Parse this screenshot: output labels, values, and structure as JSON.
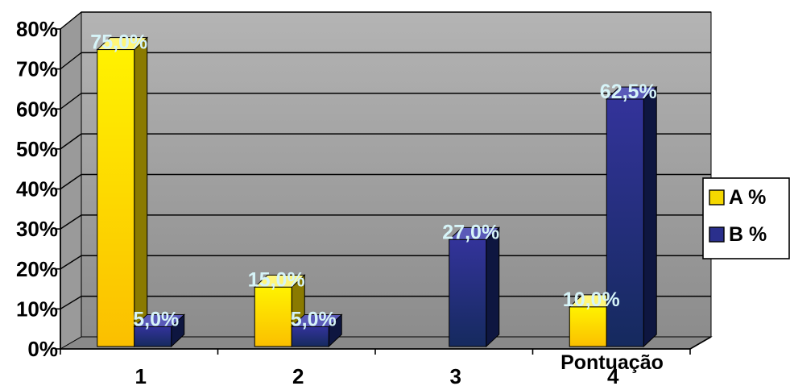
{
  "chart_data": {
    "type": "bar",
    "categories": [
      "1",
      "2",
      "3",
      "4"
    ],
    "series": [
      {
        "name": "A %",
        "values": [
          75.0,
          15.0,
          null,
          10.0
        ],
        "labels": [
          "75,0%",
          "15,0%",
          "",
          "10,0%"
        ],
        "color": "#f5d800"
      },
      {
        "name": "B %",
        "values": [
          5.0,
          5.0,
          27.0,
          62.5
        ],
        "labels": [
          "5,0%",
          "5,0%",
          "27,0%",
          "62,5%"
        ],
        "color": "#2a2f8c"
      }
    ],
    "xlabel": "Pontuação",
    "ylabel": "",
    "ylim": [
      0,
      80
    ],
    "yticks": [
      "0%",
      "10%",
      "20%",
      "30%",
      "40%",
      "50%",
      "60%",
      "70%",
      "80%"
    ],
    "grid": true,
    "legend": "right",
    "three_d": true
  }
}
